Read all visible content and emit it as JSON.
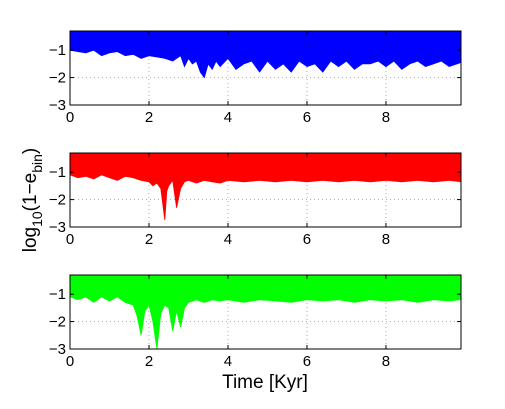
{
  "figure": {
    "ylabel_main": "log",
    "ylabel_sub": "10",
    "ylabel_mid": "(1−e",
    "ylabel_sub2": "bin",
    "ylabel_end": ")",
    "xlabel": "Time [Kyr]"
  },
  "chart_data": [
    {
      "type": "area",
      "color": "#0000ff",
      "xlim": [
        0,
        9.9
      ],
      "ylim": [
        -3,
        -0.3
      ],
      "grid": true,
      "xticks": [
        0,
        2,
        4,
        6,
        8
      ],
      "xtick_labels": [
        "0",
        "2",
        "4",
        "6",
        "8"
      ],
      "yticks": [
        -1,
        -2,
        -3
      ],
      "ytick_labels": [
        "−1",
        "−2",
        "−3"
      ],
      "x": [
        0,
        0.2,
        0.4,
        0.6,
        0.8,
        1.0,
        1.2,
        1.4,
        1.6,
        1.8,
        2.0,
        2.2,
        2.4,
        2.6,
        2.8,
        2.9,
        3.0,
        3.1,
        3.2,
        3.3,
        3.4,
        3.5,
        3.6,
        3.7,
        3.8,
        4.0,
        4.2,
        4.4,
        4.6,
        4.8,
        5.0,
        5.2,
        5.4,
        5.6,
        5.8,
        6.0,
        6.2,
        6.4,
        6.6,
        6.8,
        7.0,
        7.2,
        7.4,
        7.6,
        7.8,
        8.0,
        8.2,
        8.4,
        8.6,
        8.8,
        9.0,
        9.2,
        9.4,
        9.6,
        9.9
      ],
      "y": [
        -1.0,
        -1.05,
        -1.1,
        -1.0,
        -1.2,
        -1.1,
        -1.05,
        -1.2,
        -1.15,
        -1.3,
        -1.2,
        -1.25,
        -1.3,
        -1.4,
        -1.2,
        -1.6,
        -1.3,
        -1.5,
        -1.4,
        -1.8,
        -2.0,
        -1.5,
        -1.7,
        -1.4,
        -1.6,
        -1.3,
        -1.7,
        -1.5,
        -1.4,
        -1.8,
        -1.4,
        -1.7,
        -1.5,
        -1.8,
        -1.4,
        -1.6,
        -1.5,
        -1.8,
        -1.4,
        -1.6,
        -1.4,
        -1.7,
        -1.5,
        -1.5,
        -1.4,
        -1.6,
        -1.4,
        -1.7,
        -1.5,
        -1.4,
        -1.6,
        -1.5,
        -1.4,
        -1.6,
        -1.45
      ],
      "y_top": -0.3
    },
    {
      "type": "area",
      "color": "#ff0000",
      "xlim": [
        0,
        9.9
      ],
      "ylim": [
        -3,
        -0.3
      ],
      "grid": true,
      "xticks": [
        0,
        2,
        4,
        6,
        8
      ],
      "xtick_labels": [
        "0",
        "2",
        "4",
        "6",
        "8"
      ],
      "yticks": [
        -1,
        -2,
        -3
      ],
      "ytick_labels": [
        "−1",
        "−2",
        "−3"
      ],
      "x": [
        0,
        0.2,
        0.4,
        0.6,
        0.8,
        1.0,
        1.2,
        1.4,
        1.6,
        1.8,
        2.0,
        2.1,
        2.2,
        2.3,
        2.4,
        2.45,
        2.5,
        2.6,
        2.7,
        2.8,
        2.9,
        3.0,
        3.2,
        3.4,
        3.6,
        3.8,
        4.0,
        4.4,
        4.8,
        5.2,
        5.6,
        6.0,
        6.4,
        6.8,
        7.2,
        7.6,
        8.0,
        8.4,
        8.8,
        9.2,
        9.6,
        9.9
      ],
      "y": [
        -1.1,
        -1.2,
        -1.15,
        -1.25,
        -1.1,
        -1.2,
        -1.3,
        -1.15,
        -1.2,
        -1.3,
        -1.35,
        -1.5,
        -1.4,
        -1.6,
        -2.75,
        -1.7,
        -1.5,
        -1.3,
        -2.3,
        -1.6,
        -1.35,
        -1.3,
        -1.4,
        -1.3,
        -1.35,
        -1.4,
        -1.3,
        -1.35,
        -1.3,
        -1.35,
        -1.3,
        -1.35,
        -1.3,
        -1.35,
        -1.3,
        -1.35,
        -1.3,
        -1.35,
        -1.3,
        -1.35,
        -1.3,
        -1.35
      ],
      "y_top": -0.3
    },
    {
      "type": "area",
      "color": "#00ff00",
      "xlim": [
        0,
        9.9
      ],
      "ylim": [
        -3,
        -0.3
      ],
      "grid": true,
      "xticks": [
        0,
        2,
        4,
        6,
        8
      ],
      "xtick_labels": [
        "0",
        "2",
        "4",
        "6",
        "8"
      ],
      "yticks": [
        -1,
        -2,
        -3
      ],
      "ytick_labels": [
        "−1",
        "−2",
        "−3"
      ],
      "x": [
        0,
        0.2,
        0.4,
        0.6,
        0.8,
        1.0,
        1.2,
        1.4,
        1.6,
        1.7,
        1.8,
        1.9,
        2.0,
        2.1,
        2.2,
        2.3,
        2.4,
        2.5,
        2.6,
        2.7,
        2.8,
        2.9,
        3.0,
        3.2,
        3.4,
        3.6,
        3.8,
        4.0,
        4.4,
        4.8,
        5.2,
        5.6,
        6.0,
        6.4,
        6.8,
        7.2,
        7.6,
        8.0,
        8.4,
        8.8,
        9.2,
        9.6,
        9.9
      ],
      "y": [
        -1.1,
        -1.2,
        -1.1,
        -1.3,
        -1.1,
        -1.25,
        -1.1,
        -1.3,
        -1.4,
        -1.8,
        -2.5,
        -1.6,
        -1.4,
        -2.0,
        -3.0,
        -1.7,
        -1.4,
        -1.5,
        -2.35,
        -1.6,
        -2.2,
        -1.5,
        -1.3,
        -1.2,
        -1.3,
        -1.2,
        -1.25,
        -1.2,
        -1.3,
        -1.2,
        -1.25,
        -1.3,
        -1.2,
        -1.25,
        -1.2,
        -1.3,
        -1.2,
        -1.25,
        -1.2,
        -1.3,
        -1.2,
        -1.25,
        -1.2
      ],
      "y_top": -0.3
    }
  ]
}
